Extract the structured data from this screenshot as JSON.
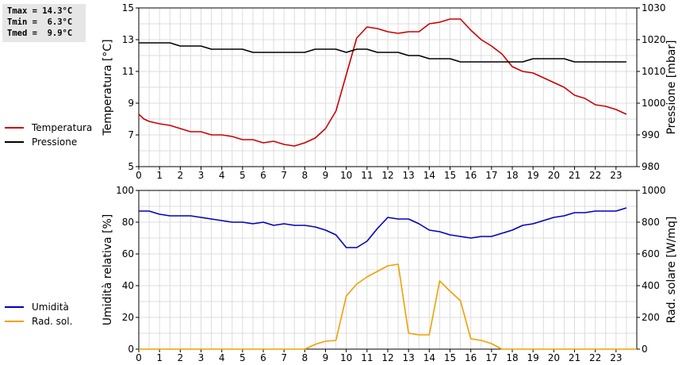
{
  "stats": {
    "tmax": "Tmax = 14.3°C",
    "tmin": "Tmin =  6.3°C",
    "tmed": "Tmed =  9.9°C"
  },
  "legend_top": [
    {
      "label": "Temperatura",
      "color": "#cc0000"
    },
    {
      "label": "Pressione",
      "color": "#000000"
    }
  ],
  "legend_bottom": [
    {
      "label": "Umidità",
      "color": "#0000bb"
    },
    {
      "label": "Rad. sol.",
      "color": "#f0a000"
    }
  ],
  "chart_data": [
    {
      "type": "line",
      "xlim": [
        0,
        24
      ],
      "x_ticks": [
        0,
        1,
        2,
        3,
        4,
        5,
        6,
        7,
        8,
        9,
        10,
        11,
        12,
        13,
        14,
        15,
        16,
        17,
        18,
        19,
        20,
        21,
        22,
        23
      ],
      "grid": true,
      "ylabel_left": "Temperatura [°C]",
      "ylim_left": [
        5,
        15
      ],
      "y_ticks_left": [
        5,
        7,
        9,
        11,
        13,
        15
      ],
      "ylabel_right": "Pressione [mbar]",
      "ylim_right": [
        980,
        1030
      ],
      "y_ticks_right": [
        980,
        990,
        1000,
        1010,
        1020,
        1030
      ],
      "series": [
        {
          "name": "Temperatura",
          "axis": "left",
          "color": "#cc0000",
          "x": [
            0,
            0.25,
            0.5,
            1,
            1.5,
            2,
            2.5,
            3,
            3.5,
            4,
            4.5,
            5,
            5.5,
            6,
            6.5,
            7,
            7.5,
            8,
            8.5,
            9,
            9.5,
            10,
            10.5,
            11,
            11.5,
            12,
            12.5,
            13,
            13.5,
            14,
            14.5,
            15,
            15.5,
            16,
            16.5,
            17,
            17.5,
            18,
            18.5,
            19,
            19.5,
            20,
            20.5,
            21,
            21.5,
            22,
            22.5,
            23,
            23.5
          ],
          "y": [
            8.3,
            8.0,
            7.85,
            7.7,
            7.6,
            7.4,
            7.2,
            7.2,
            7.0,
            7.0,
            6.9,
            6.7,
            6.7,
            6.5,
            6.6,
            6.4,
            6.3,
            6.5,
            6.8,
            7.4,
            8.5,
            10.8,
            13.1,
            13.8,
            13.7,
            13.5,
            13.4,
            13.5,
            13.5,
            14.0,
            14.1,
            14.3,
            14.3,
            13.6,
            13.0,
            12.6,
            12.1,
            11.3,
            11.0,
            10.9,
            10.6,
            10.3,
            10.0,
            9.5,
            9.3,
            8.9,
            8.8,
            8.6,
            8.3
          ]
        },
        {
          "name": "Pressione",
          "axis": "right",
          "color": "#000000",
          "x": [
            0,
            0.5,
            1,
            1.5,
            2,
            2.5,
            3,
            3.5,
            4,
            4.5,
            5,
            5.5,
            6,
            6.5,
            7,
            7.5,
            8,
            8.5,
            9,
            9.5,
            10,
            10.5,
            11,
            11.5,
            12,
            12.5,
            13,
            13.5,
            14,
            14.5,
            15,
            15.5,
            16,
            16.5,
            17,
            17.5,
            18,
            18.5,
            19,
            19.5,
            20,
            20.5,
            21,
            21.5,
            22,
            22.5,
            23,
            23.5
          ],
          "y": [
            1019,
            1019,
            1019,
            1019,
            1018,
            1018,
            1018,
            1017,
            1017,
            1017,
            1017,
            1016,
            1016,
            1016,
            1016,
            1016,
            1016,
            1017,
            1017,
            1017,
            1016,
            1017,
            1017,
            1016,
            1016,
            1016,
            1015,
            1015,
            1014,
            1014,
            1014,
            1013,
            1013,
            1013,
            1013,
            1013,
            1013,
            1013,
            1014,
            1014,
            1014,
            1014,
            1013,
            1013,
            1013,
            1013,
            1013,
            1013
          ]
        }
      ]
    },
    {
      "type": "line",
      "xlim": [
        0,
        24
      ],
      "x_ticks": [
        0,
        1,
        2,
        3,
        4,
        5,
        6,
        7,
        8,
        9,
        10,
        11,
        12,
        13,
        14,
        15,
        16,
        17,
        18,
        19,
        20,
        21,
        22,
        23
      ],
      "grid": true,
      "ylabel_left": "Umidità relativa [%]",
      "ylim_left": [
        0,
        100
      ],
      "y_ticks_left": [
        0,
        20,
        40,
        60,
        80,
        100
      ],
      "ylabel_right": "Rad. solare [W/mq]",
      "ylim_right": [
        0,
        1000
      ],
      "y_ticks_right": [
        0,
        200,
        400,
        600,
        800,
        1000
      ],
      "series": [
        {
          "name": "Umidità",
          "axis": "left",
          "color": "#0000bb",
          "x": [
            0,
            0.5,
            1,
            1.5,
            2,
            2.5,
            3,
            3.5,
            4,
            4.5,
            5,
            5.5,
            6,
            6.5,
            7,
            7.5,
            8,
            8.5,
            9,
            9.5,
            10,
            10.5,
            11,
            11.5,
            12,
            12.5,
            13,
            13.5,
            14,
            14.5,
            15,
            15.5,
            16,
            16.5,
            17,
            17.5,
            18,
            18.5,
            19,
            19.5,
            20,
            20.5,
            21,
            21.5,
            22,
            22.5,
            23,
            23.5
          ],
          "y": [
            87,
            87,
            85,
            84,
            84,
            84,
            83,
            82,
            81,
            80,
            80,
            79,
            80,
            78,
            79,
            78,
            78,
            77,
            75,
            72,
            64,
            64,
            68,
            76,
            83,
            82,
            82,
            79,
            75,
            74,
            72,
            71,
            70,
            71,
            71,
            73,
            75,
            78,
            79,
            81,
            83,
            84,
            86,
            86,
            87,
            87,
            87,
            89
          ]
        },
        {
          "name": "Rad. sol.",
          "axis": "right",
          "color": "#f0a000",
          "x": [
            0,
            8,
            8.5,
            9,
            9.5,
            10,
            10.5,
            11,
            11.5,
            12,
            12.5,
            13,
            13.5,
            14,
            14.5,
            15,
            15.5,
            16,
            16.5,
            17,
            17.5,
            24
          ],
          "y": [
            0,
            0,
            30,
            50,
            55,
            335,
            410,
            455,
            490,
            525,
            535,
            100,
            90,
            90,
            430,
            365,
            305,
            65,
            55,
            35,
            0,
            0
          ]
        }
      ]
    }
  ]
}
